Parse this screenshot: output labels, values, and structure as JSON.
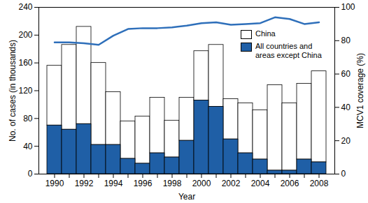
{
  "chart_data": {
    "type": "bar",
    "stacked": true,
    "categories": [
      "1990",
      null,
      "1992",
      null,
      "1994",
      null,
      "1996",
      null,
      "1998",
      null,
      "2000",
      null,
      "2002",
      null,
      "2004",
      null,
      "2006",
      null,
      "2008"
    ],
    "x_label": "Year",
    "y_label": "No. of cases (in thousands)",
    "y2_label": "MCV1 coverage (%)",
    "ylim": [
      0,
      240
    ],
    "yticks": [
      0,
      40,
      80,
      120,
      160,
      200,
      240
    ],
    "y2lim": [
      0,
      100
    ],
    "y2ticks": [
      0,
      20,
      40,
      60,
      80,
      100
    ],
    "legend": "top-right",
    "series": [
      {
        "name": "China",
        "color": "#ffffff",
        "values": [
          86,
          122,
          140,
          118,
          76,
          54,
          68,
          80,
          53,
          62,
          71,
          89,
          58,
          72,
          71,
          123,
          97,
          109,
          131
        ]
      },
      {
        "name": "All countries and areas except China",
        "color": "#1f5fa6",
        "values": [
          70,
          64,
          72,
          42,
          42,
          22,
          15,
          30,
          24,
          48,
          106,
          97,
          50,
          30,
          21,
          5,
          5,
          21,
          17
        ]
      },
      {
        "type": "line",
        "axis": "y2",
        "color": "#2e6fba",
        "values": [
          79,
          79,
          78.5,
          77.5,
          83,
          87,
          87.5,
          87.5,
          88,
          89,
          90.5,
          91,
          89.5,
          90,
          90.5,
          94,
          93,
          90,
          91
        ]
      }
    ]
  }
}
